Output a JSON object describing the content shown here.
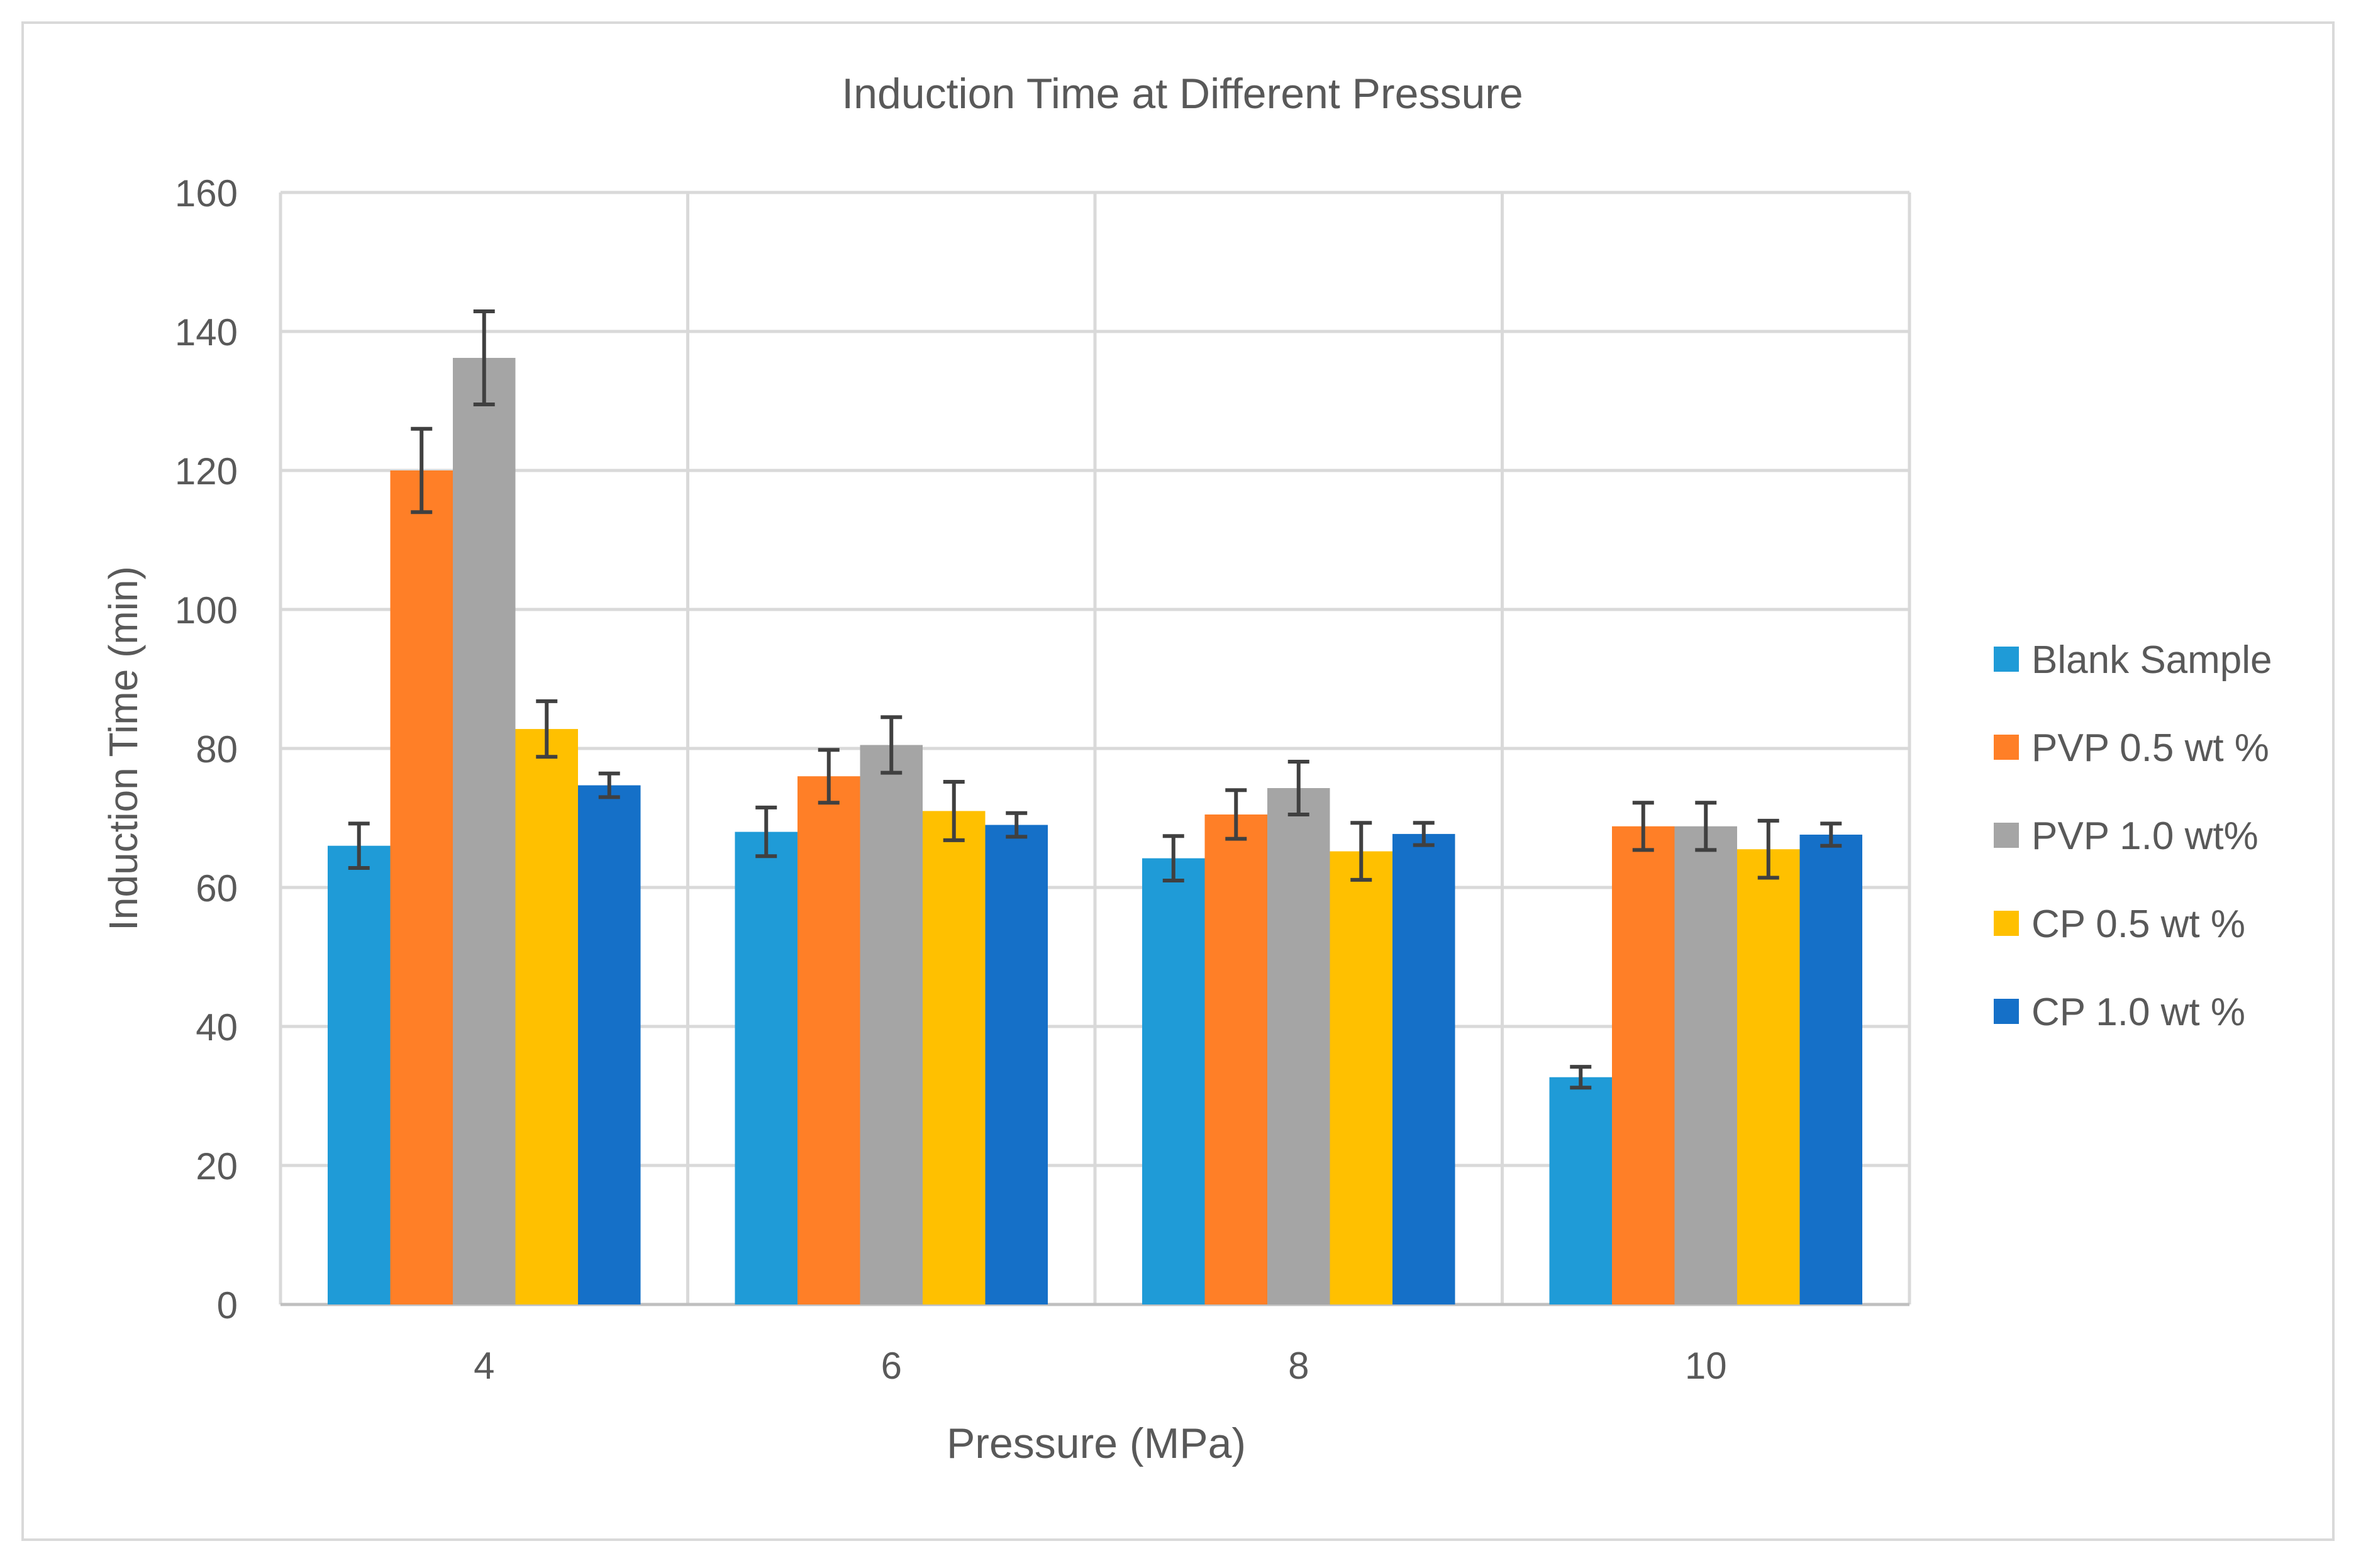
{
  "chart_data": {
    "type": "bar",
    "title": "Induction Time at Different Pressure",
    "xlabel": "Pressure (MPa)",
    "ylabel": "Induction Time (min)",
    "ylim": [
      0,
      160
    ],
    "yticks": [
      0,
      20,
      40,
      60,
      80,
      100,
      120,
      140,
      160
    ],
    "grid": true,
    "legend_position": "right",
    "categories": [
      "4",
      "6",
      "8",
      "10"
    ],
    "series": [
      {
        "name": "Blank Sample",
        "color": "#1F9BD7",
        "values": [
          66,
          68,
          64.2,
          32.7
        ],
        "errors": [
          3.2,
          3.5,
          3.2,
          1.5
        ]
      },
      {
        "name": "PVP 0.5 wt %",
        "color": "#FF7F27",
        "values": [
          120,
          76,
          70.5,
          68.8
        ],
        "errors": [
          6,
          3.8,
          3.5,
          3.4
        ]
      },
      {
        "name": "PVP 1.0 wt%",
        "color": "#A5A5A5",
        "values": [
          136.2,
          80.5,
          74.3,
          68.8
        ],
        "errors": [
          6.7,
          4,
          3.8,
          3.4
        ]
      },
      {
        "name": "CP 0.5 wt %",
        "color": "#FFC000",
        "values": [
          82.8,
          71,
          65.2,
          65.5
        ],
        "errors": [
          4,
          4.2,
          4.1,
          4.1
        ]
      },
      {
        "name": "CP 1.0 wt %",
        "color": "#1570C8",
        "values": [
          74.7,
          69,
          67.7,
          67.6
        ],
        "errors": [
          1.7,
          1.7,
          1.6,
          1.6
        ]
      }
    ]
  }
}
